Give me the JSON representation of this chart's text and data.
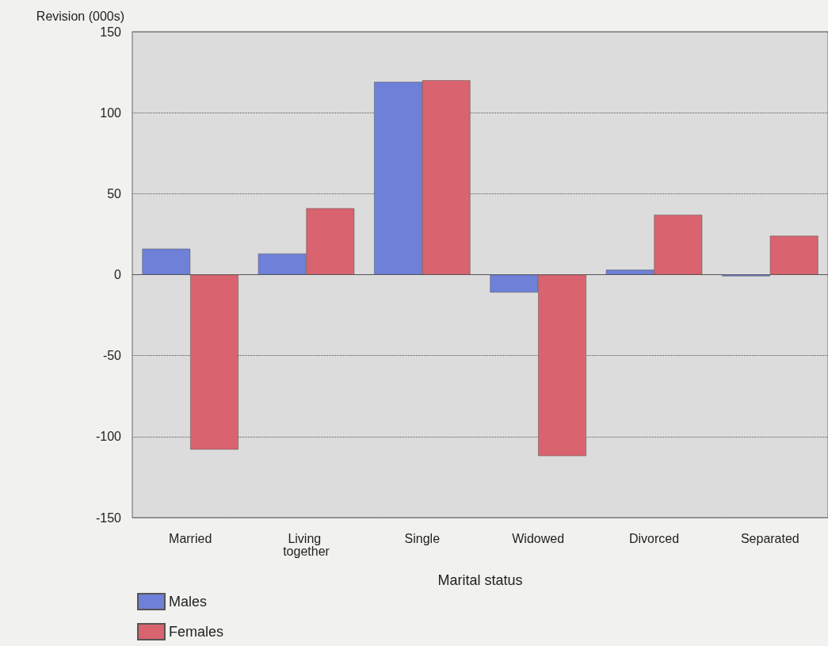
{
  "chart_data": {
    "type": "bar",
    "xlabel": "Marital status",
    "ylabel": "Revision (000s)",
    "categories": [
      "Married",
      "Living together",
      "Single",
      "Widowed",
      "Divorced",
      "Separated"
    ],
    "series": [
      {
        "name": "Males",
        "color": "#6f80d8",
        "values": [
          16,
          13,
          119,
          -11,
          3,
          -1
        ]
      },
      {
        "name": "Females",
        "color": "#d9636f",
        "values": [
          -108,
          41,
          120,
          -112,
          37,
          24
        ]
      }
    ],
    "ylim": [
      -150,
      150
    ],
    "yticks": [
      -150,
      -100,
      -50,
      0,
      50,
      100,
      150
    ],
    "grid": "y",
    "legend": "bottom left"
  }
}
